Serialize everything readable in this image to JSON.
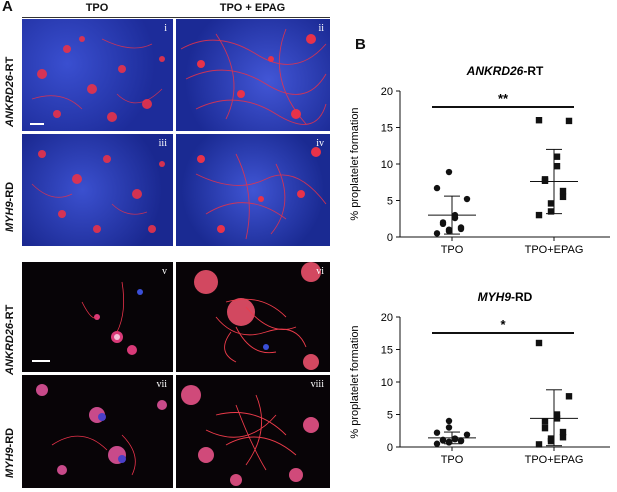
{
  "panel_a": {
    "letter": "A",
    "col_headers": [
      "TPO",
      "TPO + EPAG"
    ],
    "row_labels": [
      {
        "gene": "ANKRD26",
        "suffix": "-RT"
      },
      {
        "gene": "MYH9",
        "suffix": "-RD"
      },
      {
        "gene": "ANKRD26",
        "suffix": "-RT"
      },
      {
        "gene": "MYH9",
        "suffix": "-RD"
      }
    ],
    "tiles": [
      "i",
      "ii",
      "iii",
      "iv",
      "v",
      "vi",
      "vii",
      "viii"
    ],
    "colors": {
      "blue_bg": "#2a3fb8",
      "red": "#e8324a",
      "black": "#050305"
    }
  },
  "panel_b": {
    "letter": "B",
    "chart_data": [
      {
        "type": "scatter",
        "title_gene": "ANKRD26",
        "title_suffix": "-RT",
        "ylabel": "% proplatelet formation",
        "categories": [
          "TPO",
          "TPO+EPAG"
        ],
        "ylim": [
          0,
          20
        ],
        "yticks": [
          0,
          5,
          10,
          15,
          20
        ],
        "significance": "**",
        "series": [
          {
            "category": "TPO",
            "marker": "circle",
            "values": [
              0.5,
              0.8,
              1.0,
              1.1,
              1.3,
              1.8,
              2.0,
              2.6,
              3.0,
              5.2,
              6.7,
              8.9
            ],
            "mean": 3.0,
            "sd_low": 0.4,
            "sd_high": 5.6
          },
          {
            "category": "TPO+EPAG",
            "marker": "square",
            "values": [
              3.0,
              3.5,
              4.6,
              5.5,
              6.3,
              7.7,
              7.9,
              9.7,
              11.0,
              15.9,
              16.0
            ],
            "mean": 7.6,
            "sd_low": 3.2,
            "sd_high": 12.0
          }
        ]
      },
      {
        "type": "scatter",
        "title_gene": "MYH9",
        "title_suffix": "-RD",
        "ylabel": "% proplatelet formation",
        "categories": [
          "TPO",
          "TPO+EPAG"
        ],
        "ylim": [
          0,
          20
        ],
        "yticks": [
          0,
          5,
          10,
          15,
          20
        ],
        "significance": "*",
        "series": [
          {
            "category": "TPO",
            "marker": "circle",
            "values": [
              0.5,
              0.7,
              0.8,
              0.9,
              1.0,
              1.0,
              1.1,
              1.2,
              1.3,
              1.9,
              2.2,
              3.0,
              4.0
            ],
            "mean": 1.4,
            "sd_low": 0.5,
            "sd_high": 2.3
          },
          {
            "category": "TPO+EPAG",
            "marker": "square",
            "values": [
              0.4,
              0.9,
              1.3,
              1.5,
              2.3,
              2.9,
              3.9,
              4.4,
              5.0,
              7.8,
              16.0
            ],
            "mean": 4.4,
            "sd_low": 0.2,
            "sd_high": 8.8
          }
        ]
      }
    ]
  }
}
